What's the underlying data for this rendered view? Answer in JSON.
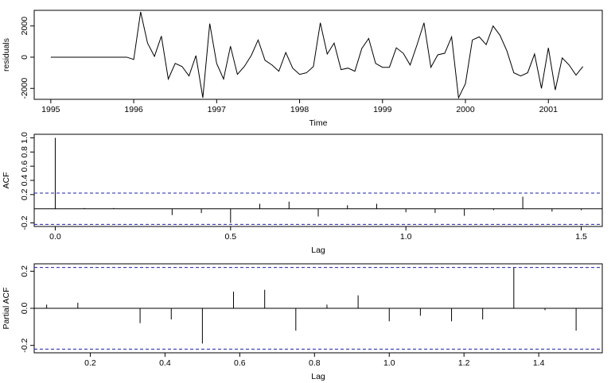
{
  "chart_data": [
    {
      "type": "line",
      "xlabel": "Time",
      "ylabel": "residuals",
      "xlim": [
        1994.8,
        2001.65
      ],
      "ylim": [
        -2700,
        3000
      ],
      "x_ticks": [
        1995,
        1996,
        1997,
        1998,
        1999,
        2000,
        2001
      ],
      "y_ticks": [
        -2000,
        0,
        2000
      ],
      "x_tick_labels": [
        "1995",
        "1996",
        "1997",
        "1998",
        "1999",
        "2000",
        "2001"
      ],
      "y_tick_labels": [
        "-2000",
        "0",
        "2000"
      ],
      "start": 1995.0,
      "frequency": 12,
      "values": [
        0,
        0,
        0,
        0,
        0,
        0,
        0,
        0,
        0,
        0,
        0,
        0,
        -150,
        2900,
        900,
        50,
        1350,
        -1400,
        -400,
        -600,
        -1200,
        100,
        -2600,
        2150,
        -400,
        -1400,
        700,
        -1100,
        -600,
        100,
        1100,
        -200,
        -500,
        -900,
        300,
        -700,
        -1100,
        -1000,
        -600,
        2200,
        200,
        900,
        -800,
        -700,
        -900,
        550,
        1200,
        -400,
        -650,
        -650,
        600,
        250,
        -500,
        800,
        2200,
        -650,
        150,
        250,
        1300,
        -2600,
        -1700,
        1100,
        1300,
        800,
        2000,
        1400,
        400,
        -1000,
        -1200,
        -1000,
        200,
        -2000,
        600,
        -2100,
        -50,
        -500,
        -1150,
        -600
      ]
    },
    {
      "type": "bar",
      "xlabel": "Lag",
      "ylabel": "ACF",
      "xlim": [
        -0.06,
        1.56
      ],
      "ylim": [
        -0.25,
        1.05
      ],
      "x_ticks": [
        0.0,
        0.5,
        1.0,
        1.5
      ],
      "x_tick_labels": [
        "0.0",
        "0.5",
        "1.0",
        "1.5"
      ],
      "y_ticks": [
        -0.2,
        0.2,
        0.4,
        0.6,
        0.8,
        1.0
      ],
      "y_tick_labels": [
        "-0.2",
        "0.2",
        "0.4",
        "0.6",
        "0.8",
        "1.0"
      ],
      "conf_limit": 0.22,
      "lags": [
        0.0,
        0.0833,
        0.1667,
        0.25,
        0.3333,
        0.4167,
        0.5,
        0.5833,
        0.6667,
        0.75,
        0.8333,
        0.9167,
        1.0,
        1.0833,
        1.1667,
        1.25,
        1.3333,
        1.4167,
        1.5
      ],
      "values": [
        1.0,
        0.01,
        0.01,
        0.0,
        -0.09,
        -0.06,
        -0.2,
        0.07,
        0.1,
        -0.11,
        0.05,
        0.07,
        -0.05,
        -0.06,
        -0.1,
        -0.02,
        0.17,
        -0.04,
        -0.02
      ]
    },
    {
      "type": "bar",
      "xlabel": "Lag",
      "ylabel": "Partial ACF",
      "xlim": [
        0.05,
        1.57
      ],
      "ylim": [
        -0.24,
        0.24
      ],
      "x_ticks": [
        0.2,
        0.4,
        0.6,
        0.8,
        1.0,
        1.2,
        1.4
      ],
      "x_tick_labels": [
        "0.2",
        "0.4",
        "0.6",
        "0.8",
        "1.0",
        "1.2",
        "1.4"
      ],
      "y_ticks": [
        -0.2,
        0.0,
        0.2
      ],
      "y_tick_labels": [
        "-0.2",
        "0.0",
        "0.2"
      ],
      "conf_limit": 0.22,
      "lags": [
        0.0833,
        0.1667,
        0.25,
        0.3333,
        0.4167,
        0.5,
        0.5833,
        0.6667,
        0.75,
        0.8333,
        0.9167,
        1.0,
        1.0833,
        1.1667,
        1.25,
        1.3333,
        1.4167,
        1.5
      ],
      "values": [
        0.02,
        0.03,
        0.0,
        -0.08,
        -0.06,
        -0.19,
        0.09,
        0.1,
        -0.12,
        0.02,
        0.07,
        -0.07,
        -0.04,
        -0.07,
        -0.06,
        0.22,
        -0.01,
        -0.12
      ]
    }
  ],
  "colors": {
    "line": "#000000",
    "conf_line": "#1f1fb4"
  }
}
